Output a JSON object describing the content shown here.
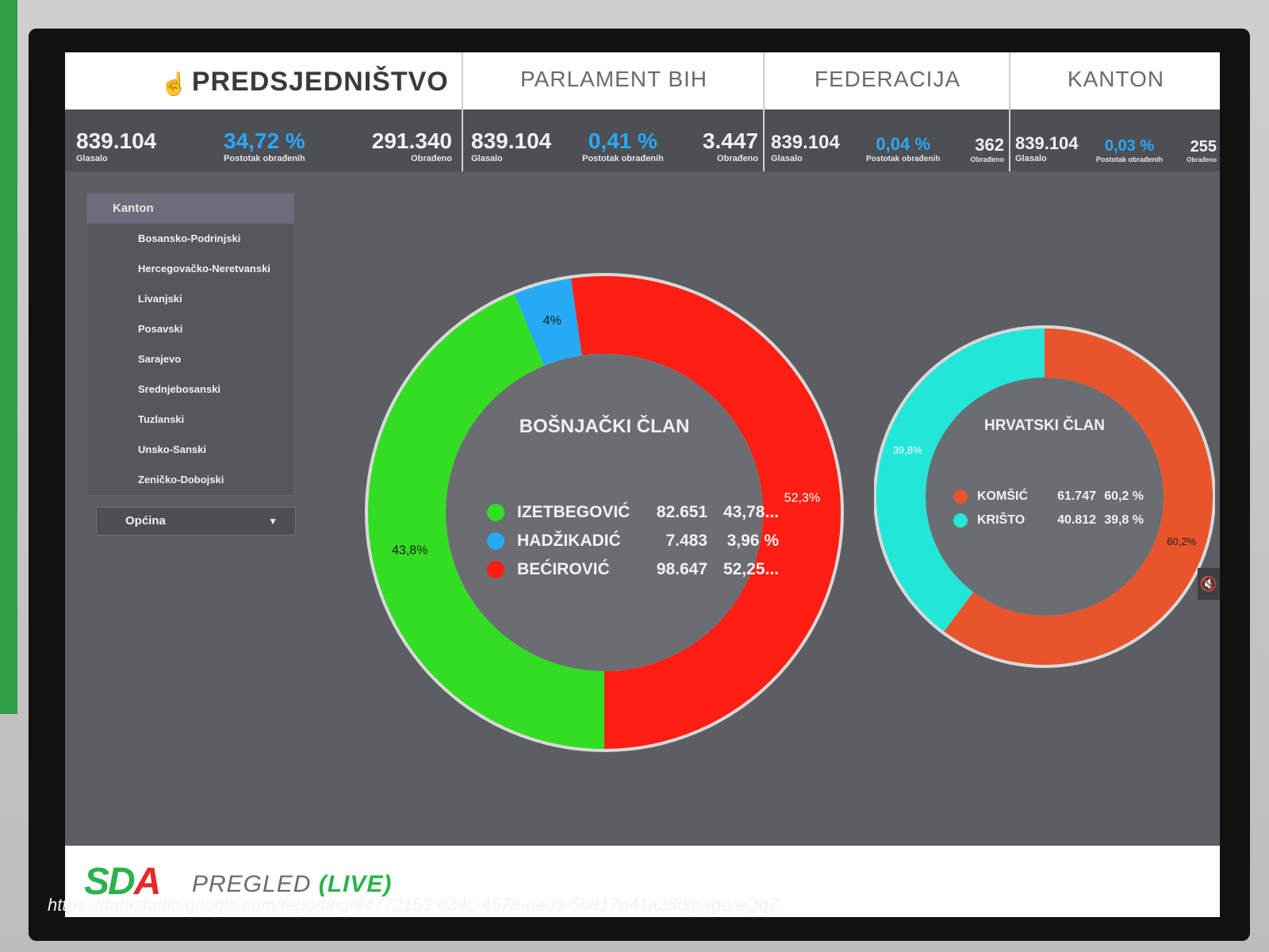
{
  "header": {
    "sections": [
      {
        "title": "PREDSJEDNIŠTVO",
        "glasalo": "839.104",
        "glasalo_label": "Glasalo",
        "postotak": "34,72 %",
        "postotak_label": "Postotak obrađenih",
        "obradeno": "291.340",
        "obradeno_label": "Obrađeno"
      },
      {
        "title": "PARLAMENT BIH",
        "glasalo": "839.104",
        "glasalo_label": "Glasalo",
        "postotak": "0,41 %",
        "postotak_label": "Postotak obrađenih",
        "obradeno": "3.447",
        "obradeno_label": "Obrađeno"
      },
      {
        "title": "FEDERACIJA",
        "glasalo": "839.104",
        "glasalo_label": "Glasalo",
        "postotak": "0,04 %",
        "postotak_label": "Postotak obrađenih",
        "obradeno": "362",
        "obradeno_label": "Obrađeno"
      },
      {
        "title": "KANTON",
        "glasalo": "839.104",
        "glasalo_label": "Glasalo",
        "postotak": "0,03 %",
        "postotak_label": "Postotak obrađenih",
        "obradeno": "255",
        "obradeno_label": "Obrađeno"
      }
    ]
  },
  "sidebar": {
    "kanton_label": "Kanton",
    "items": [
      "Bosansko-Podrinjski",
      "Hercegovačko-Neretvanski",
      "Livanjski",
      "Posavski",
      "Sarajevo",
      "Srednjebosanski",
      "Tuzlanski",
      "Unsko-Sanski",
      "Zeničko-Dobojski"
    ],
    "opcina_label": "Općina"
  },
  "icons": {
    "cursor": "hand-pointer-icon",
    "dropdown": "chevron-down-icon",
    "mute": "speaker-mute-icon"
  },
  "chart_data": [
    {
      "type": "pie",
      "title": "BOŠNJAČKI ČLAN",
      "series": [
        {
          "name": "IZETBEGOVIĆ",
          "value": 82651,
          "value_text": "82.651",
          "percent_text": "43,78...",
          "slice_label": "43,8%",
          "color": "#33dd22"
        },
        {
          "name": "HADŽIKADIĆ",
          "value": 7483,
          "value_text": "7.483",
          "percent_text": "3,96 %",
          "slice_label": "4%",
          "color": "#27aaf5"
        },
        {
          "name": "BEĆIROVIĆ",
          "value": 98647,
          "value_text": "98.647",
          "percent_text": "52,25...",
          "slice_label": "52,3%",
          "color": "#ff1e14"
        }
      ]
    },
    {
      "type": "pie",
      "title": "HRVATSKI ČLAN",
      "series": [
        {
          "name": "KOMŠIĆ",
          "value": 61747,
          "value_text": "61.747",
          "percent_text": "60,2 %",
          "slice_label": "60,2%",
          "color": "#e8542c"
        },
        {
          "name": "KRIŠTO",
          "value": 40812,
          "value_text": "40.812",
          "percent_text": "39,8 %",
          "slice_label": "39,8%",
          "color": "#22e6d8"
        }
      ]
    }
  ],
  "footer": {
    "logo_s": "S",
    "logo_d": "D",
    "logo_a": "A",
    "pregled": "PREGLED",
    "live": "(LIVE)"
  },
  "url": "https://datastudio.google.com/reporting/44772153-634c-4578-ae09-5b817e41a25d/page/eQqZ"
}
